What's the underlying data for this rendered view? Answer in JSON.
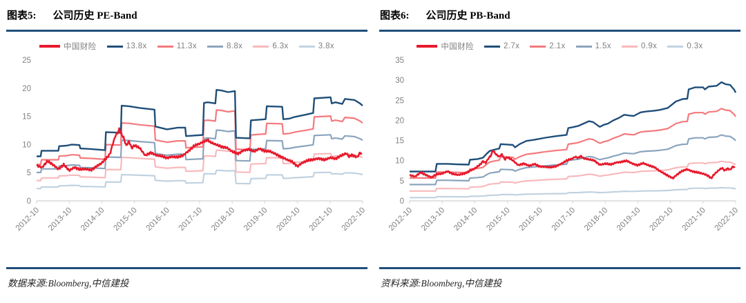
{
  "colors": {
    "accent_rule": "#1f4e79",
    "price_red": "#e8192c",
    "band_navy": "#1f4e79",
    "band_salmon": "#f4797d",
    "band_steel": "#8aa4bd",
    "band_pink": "#f8b9bc",
    "band_pale": "#c1d2e0",
    "axis_text": "#808080",
    "axis_line": "#d9d9d9"
  },
  "chart_data": [
    {
      "type": "line",
      "figure_number": "图表5:",
      "figure_title": "公司历史 PE-Band",
      "source_text": "数据来源:Bloomberg,中信建投",
      "legend_position": "top",
      "grid": false,
      "x_unit": "months since 2012-10",
      "x_tick_labels": [
        "2012-10",
        "2013-10",
        "2014-10",
        "2015-10",
        "2016-10",
        "2017-10",
        "2018-10",
        "2019-10",
        "2020-10",
        "2021-10",
        "2022-10"
      ],
      "months_span": 120,
      "ylim": [
        0,
        25
      ],
      "y_ticks": [
        0,
        5,
        10,
        15,
        20,
        25
      ],
      "price_series": {
        "name": "中国财险",
        "color": "#e8192c",
        "points": [
          [
            0,
            6.3
          ],
          [
            2,
            5.9
          ],
          [
            4,
            7.0
          ],
          [
            6,
            6.4
          ],
          [
            8,
            5.6
          ],
          [
            10,
            6.4
          ],
          [
            12,
            5.4
          ],
          [
            14,
            6.0
          ],
          [
            16,
            5.6
          ],
          [
            18,
            5.7
          ],
          [
            20,
            5.5
          ],
          [
            22,
            6.1
          ],
          [
            24,
            6.7
          ],
          [
            26,
            7.7
          ],
          [
            27,
            8.3
          ],
          [
            28,
            10.0
          ],
          [
            29,
            11.5
          ],
          [
            30,
            12.2
          ],
          [
            30.5,
            12.8
          ],
          [
            31,
            12.0
          ],
          [
            32,
            11.2
          ],
          [
            33,
            9.8
          ],
          [
            34,
            10.6
          ],
          [
            35,
            9.4
          ],
          [
            36,
            9.9
          ],
          [
            38,
            9.4
          ],
          [
            40,
            8.1
          ],
          [
            42,
            8.6
          ],
          [
            44,
            8.1
          ],
          [
            46,
            7.9
          ],
          [
            48,
            7.6
          ],
          [
            50,
            7.8
          ],
          [
            52,
            7.7
          ],
          [
            54,
            8.1
          ],
          [
            56,
            8.9
          ],
          [
            58,
            9.8
          ],
          [
            60,
            10.2
          ],
          [
            62,
            10.7
          ],
          [
            63,
            10.9
          ],
          [
            64,
            10.4
          ],
          [
            66,
            10.0
          ],
          [
            68,
            9.6
          ],
          [
            70,
            9.4
          ],
          [
            72,
            8.7
          ],
          [
            74,
            8.3
          ],
          [
            76,
            8.9
          ],
          [
            78,
            9.2
          ],
          [
            80,
            8.8
          ],
          [
            82,
            9.3
          ],
          [
            84,
            8.9
          ],
          [
            86,
            8.8
          ],
          [
            88,
            8.3
          ],
          [
            90,
            7.8
          ],
          [
            92,
            7.3
          ],
          [
            94,
            6.9
          ],
          [
            96,
            6.1
          ],
          [
            98,
            6.8
          ],
          [
            100,
            7.2
          ],
          [
            102,
            7.4
          ],
          [
            104,
            7.6
          ],
          [
            106,
            7.3
          ],
          [
            108,
            7.7
          ],
          [
            110,
            7.5
          ],
          [
            112,
            8.0
          ],
          [
            114,
            8.4
          ],
          [
            115,
            7.8
          ],
          [
            116,
            8.1
          ],
          [
            118,
            7.7
          ],
          [
            119,
            8.5
          ],
          [
            120,
            8.2
          ]
        ]
      },
      "band_series": {
        "top_multiple": 13.8,
        "bands": [
          {
            "name": "13.8x",
            "multiple": 13.8,
            "color": "#1f4e79"
          },
          {
            "name": "11.3x",
            "multiple": 11.3,
            "color": "#f4797d"
          },
          {
            "name": "8.8x",
            "multiple": 8.8,
            "color": "#8aa4bd"
          },
          {
            "name": "6.3x",
            "multiple": 6.3,
            "color": "#f8b9bc"
          },
          {
            "name": "3.8x",
            "multiple": 3.8,
            "color": "#c1d2e0"
          }
        ],
        "top_points": [
          [
            0,
            7.9
          ],
          [
            1.5,
            7.9
          ],
          [
            1.8,
            8.9
          ],
          [
            8,
            8.9
          ],
          [
            8.3,
            9.7
          ],
          [
            11,
            9.8
          ],
          [
            13,
            10.0
          ],
          [
            15.8,
            9.9
          ],
          [
            16.1,
            9.3
          ],
          [
            20,
            9.2
          ],
          [
            25.2,
            9.0
          ],
          [
            25.5,
            12.2
          ],
          [
            31,
            12.1
          ],
          [
            31.3,
            16.9
          ],
          [
            34,
            16.8
          ],
          [
            38,
            16.5
          ],
          [
            43.4,
            16.2
          ],
          [
            43.7,
            13.2
          ],
          [
            48,
            12.7
          ],
          [
            52,
            13.0
          ],
          [
            54.7,
            13.0
          ],
          [
            55,
            11.5
          ],
          [
            61.2,
            11.7
          ],
          [
            61.6,
            17.4
          ],
          [
            63,
            17.5
          ],
          [
            65.8,
            17.3
          ],
          [
            66.2,
            19.7
          ],
          [
            68,
            19.6
          ],
          [
            70.5,
            19.3
          ],
          [
            73,
            19.5
          ],
          [
            73.4,
            11.2
          ],
          [
            78.5,
            11.1
          ],
          [
            78.9,
            14.3
          ],
          [
            84.3,
            14.5
          ],
          [
            84.7,
            16.8
          ],
          [
            90.4,
            16.7
          ],
          [
            90.8,
            14.5
          ],
          [
            93,
            14.6
          ],
          [
            95,
            14.9
          ],
          [
            97,
            15.1
          ],
          [
            99,
            15.3
          ],
          [
            101.8,
            15.6
          ],
          [
            102.2,
            18.2
          ],
          [
            108.2,
            18.4
          ],
          [
            108.6,
            17.3
          ],
          [
            110,
            17.5
          ],
          [
            112.5,
            17.2
          ],
          [
            113.5,
            18.1
          ],
          [
            117,
            17.9
          ],
          [
            119,
            17.3
          ],
          [
            120,
            16.9
          ]
        ]
      }
    },
    {
      "type": "line",
      "figure_number": "图表6:",
      "figure_title": "公司历史 PB-Band",
      "source_text": "资料来源:Bloomberg,中信建投",
      "legend_position": "top",
      "grid": false,
      "x_unit": "months since 2012-10",
      "x_tick_labels": [
        "2012-10",
        "2013-10",
        "2014-10",
        "2015-10",
        "2016-10",
        "2017-10",
        "2018-10",
        "2019-10",
        "2020-10",
        "2021-10",
        "2022-10"
      ],
      "months_span": 120,
      "ylim": [
        0,
        35
      ],
      "y_ticks": [
        0,
        5,
        10,
        15,
        20,
        25,
        30,
        35
      ],
      "price_series": {
        "name": "中国财险",
        "color": "#e8192c",
        "points": [
          [
            0,
            6.4
          ],
          [
            2,
            6.0
          ],
          [
            4,
            7.0
          ],
          [
            6,
            6.4
          ],
          [
            8,
            5.8
          ],
          [
            10,
            6.6
          ],
          [
            12,
            6.8
          ],
          [
            14,
            7.4
          ],
          [
            16,
            6.7
          ],
          [
            18,
            6.5
          ],
          [
            20,
            6.8
          ],
          [
            22,
            7.4
          ],
          [
            24,
            8.0
          ],
          [
            26,
            9.0
          ],
          [
            27,
            9.8
          ],
          [
            28,
            9.4
          ],
          [
            29,
            10.5
          ],
          [
            30,
            11.3
          ],
          [
            30.5,
            12.4
          ],
          [
            31,
            12.2
          ],
          [
            32,
            11.4
          ],
          [
            33,
            11.0
          ],
          [
            34,
            11.6
          ],
          [
            35,
            10.3
          ],
          [
            36,
            10.9
          ],
          [
            38,
            10.1
          ],
          [
            40,
            8.9
          ],
          [
            42,
            9.3
          ],
          [
            44,
            8.7
          ],
          [
            46,
            9.1
          ],
          [
            48,
            8.5
          ],
          [
            50,
            8.4
          ],
          [
            52,
            8.3
          ],
          [
            54,
            8.6
          ],
          [
            56,
            9.3
          ],
          [
            58,
            10.1
          ],
          [
            60,
            10.6
          ],
          [
            61,
            11.0
          ],
          [
            62,
            10.7
          ],
          [
            63,
            11.2
          ],
          [
            64,
            10.6
          ],
          [
            66,
            10.3
          ],
          [
            68,
            10.0
          ],
          [
            70,
            8.9
          ],
          [
            72,
            9.2
          ],
          [
            74,
            9.0
          ],
          [
            76,
            9.5
          ],
          [
            78,
            9.7
          ],
          [
            80,
            10.0
          ],
          [
            82,
            9.3
          ],
          [
            84,
            8.9
          ],
          [
            86,
            9.4
          ],
          [
            88,
            8.8
          ],
          [
            90,
            8.4
          ],
          [
            92,
            7.4
          ],
          [
            94,
            6.6
          ],
          [
            96,
            5.9
          ],
          [
            97,
            5.6
          ],
          [
            98,
            6.3
          ],
          [
            100,
            7.3
          ],
          [
            102,
            7.9
          ],
          [
            104,
            7.4
          ],
          [
            106,
            7.1
          ],
          [
            108,
            6.8
          ],
          [
            110,
            6.2
          ],
          [
            111,
            5.6
          ],
          [
            112,
            6.5
          ],
          [
            114,
            7.7
          ],
          [
            115,
            8.1
          ],
          [
            116,
            7.5
          ],
          [
            117,
            8.0
          ],
          [
            118,
            7.7
          ],
          [
            119,
            8.5
          ],
          [
            120,
            8.2
          ]
        ]
      },
      "band_series": {
        "top_multiple": 2.7,
        "bands": [
          {
            "name": "2.7x",
            "multiple": 2.7,
            "color": "#1f4e79"
          },
          {
            "name": "2.1x",
            "multiple": 2.1,
            "color": "#f4797d"
          },
          {
            "name": "1.5x",
            "multiple": 1.5,
            "color": "#8aa4bd"
          },
          {
            "name": "0.9x",
            "multiple": 0.9,
            "color": "#f8b9bc"
          },
          {
            "name": "0.3x",
            "multiple": 0.3,
            "color": "#c1d2e0"
          }
        ],
        "top_points": [
          [
            0,
            7.3
          ],
          [
            9.5,
            7.3
          ],
          [
            10,
            9.2
          ],
          [
            14,
            9.2
          ],
          [
            17,
            9.1
          ],
          [
            21.8,
            9.0
          ],
          [
            22.2,
            10.2
          ],
          [
            25,
            10.4
          ],
          [
            27,
            10.7
          ],
          [
            28.5,
            11.8
          ],
          [
            29.5,
            12.4
          ],
          [
            31,
            12.7
          ],
          [
            33,
            13.0
          ],
          [
            33.5,
            14.1
          ],
          [
            36,
            14.0
          ],
          [
            38,
            13.9
          ],
          [
            38.8,
            13.3
          ],
          [
            40.5,
            14.1
          ],
          [
            43,
            14.9
          ],
          [
            46,
            15.2
          ],
          [
            50,
            15.7
          ],
          [
            54,
            16.1
          ],
          [
            57.8,
            16.4
          ],
          [
            58.4,
            18.1
          ],
          [
            60,
            18.3
          ],
          [
            62,
            18.6
          ],
          [
            64,
            19.2
          ],
          [
            66,
            19.8
          ],
          [
            67.5,
            19.6
          ],
          [
            70,
            18.4
          ],
          [
            71.5,
            18.9
          ],
          [
            73,
            19.2
          ],
          [
            75,
            20.0
          ],
          [
            77,
            20.6
          ],
          [
            79,
            21.4
          ],
          [
            81,
            21.2
          ],
          [
            82.5,
            21.1
          ],
          [
            85,
            22.0
          ],
          [
            87,
            22.2
          ],
          [
            90,
            22.4
          ],
          [
            92,
            22.6
          ],
          [
            95,
            23.1
          ],
          [
            98,
            24.7
          ],
          [
            100.5,
            25.3
          ],
          [
            102.2,
            25.4
          ],
          [
            102.7,
            27.7
          ],
          [
            105,
            28.2
          ],
          [
            108,
            28.2
          ],
          [
            108.7,
            27.7
          ],
          [
            110,
            28.4
          ],
          [
            113,
            28.6
          ],
          [
            114.8,
            29.5
          ],
          [
            116.3,
            29.0
          ],
          [
            118,
            28.8
          ],
          [
            119.5,
            27.6
          ],
          [
            120,
            26.9
          ]
        ]
      }
    }
  ]
}
